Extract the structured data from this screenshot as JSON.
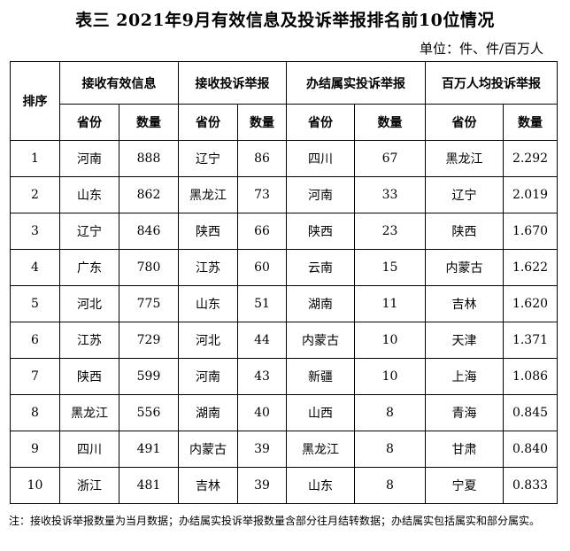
{
  "title": "表三 2021年9月有效信息及投诉举报排名前10位情况",
  "unit": "单位：件、件/百万人",
  "headers": {
    "rank": "排序",
    "groups": [
      "接收有效信息",
      "接收投诉举报",
      "办结属实投诉举报",
      "百万人均投诉举报"
    ],
    "province": "省份",
    "count": "数量"
  },
  "rows": [
    [
      "1",
      "河南",
      "888",
      "辽宁",
      "86",
      "四川",
      "67",
      "黑龙江",
      "2.292"
    ],
    [
      "2",
      "山东",
      "862",
      "黑龙江",
      "73",
      "河南",
      "33",
      "辽宁",
      "2.019"
    ],
    [
      "3",
      "辽宁",
      "846",
      "陕西",
      "66",
      "陕西",
      "23",
      "陕西",
      "1.670"
    ],
    [
      "4",
      "广东",
      "780",
      "江苏",
      "60",
      "云南",
      "15",
      "内蒙古",
      "1.622"
    ],
    [
      "5",
      "河北",
      "775",
      "山东",
      "51",
      "湖南",
      "11",
      "吉林",
      "1.620"
    ],
    [
      "6",
      "江苏",
      "729",
      "河北",
      "44",
      "内蒙古",
      "10",
      "天津",
      "1.371"
    ],
    [
      "7",
      "陕西",
      "599",
      "河南",
      "43",
      "新疆",
      "10",
      "上海",
      "1.086"
    ],
    [
      "8",
      "黑龙江",
      "556",
      "湖南",
      "40",
      "山西",
      "8",
      "青海",
      "0.845"
    ],
    [
      "9",
      "四川",
      "491",
      "内蒙古",
      "39",
      "黑龙江",
      "8",
      "甘肃",
      "0.840"
    ],
    [
      "10",
      "浙江",
      "481",
      "吉林",
      "39",
      "山东",
      "8",
      "宁夏",
      "0.833"
    ]
  ],
  "note": "注：接收投诉举报数量为当月数据；办结属实投诉举报数量含部分往月结转数据；办结属实包括属实和部分属实。"
}
